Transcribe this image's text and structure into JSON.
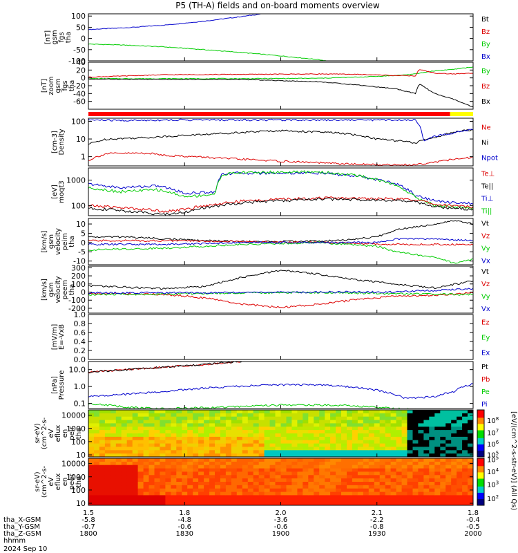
{
  "title": "P5 (TH-A) fields and on-board moments overview",
  "date_label": "2024 Sep 10",
  "colorbar_label": "[eV/(cm^2-s-str-eV)] (All Qs)",
  "colorbar_ticks": [
    "10^8",
    "10^7",
    "10^6",
    "10^5",
    "10^4",
    "10^3",
    "10^2"
  ],
  "colors": {
    "black": "#000000",
    "red": "#dd0000",
    "green": "#00cc00",
    "blue": "#0000cc",
    "yellow": "#ffff00"
  },
  "chart_data": [
    {
      "id": "fgs_gsm_full",
      "type": "line",
      "ylabel": [
        "tha",
        "fgs",
        "gsm",
        "[nT]"
      ],
      "ylim": [
        -100,
        110
      ],
      "yticks": [
        "100",
        "50",
        "0",
        "-50",
        "-100"
      ],
      "legend": [
        {
          "name": "Bt",
          "color": "black"
        },
        {
          "name": "Bz",
          "color": "red"
        },
        {
          "name": "By",
          "color": "green"
        },
        {
          "name": "Bx",
          "color": "blue"
        }
      ],
      "series": [
        {
          "name": "Bx",
          "color": "blue",
          "x": [
            0,
            0.1,
            0.2,
            0.3,
            0.4,
            0.45
          ],
          "y": [
            40,
            48,
            60,
            77,
            98,
            110
          ]
        },
        {
          "name": "By",
          "color": "green",
          "x": [
            0,
            0.1,
            0.2,
            0.3,
            0.4,
            0.5,
            0.6,
            0.62
          ],
          "y": [
            -25,
            -30,
            -38,
            -50,
            -63,
            -78,
            -95,
            -100
          ]
        }
      ]
    },
    {
      "id": "fgs_gsm_zoom",
      "type": "line",
      "ylabel": [
        "tha",
        "fgs",
        "gsm",
        "zoom",
        "[nT]"
      ],
      "ylim": [
        -80,
        40
      ],
      "yticks": [
        "40",
        "20",
        "0",
        "-20",
        "-40",
        "-60"
      ],
      "legend": [
        {
          "name": "By",
          "color": "green"
        },
        {
          "name": "Bz",
          "color": "red"
        },
        {
          "name": "Bx",
          "color": "black"
        }
      ],
      "series": [
        {
          "name": "By",
          "color": "green",
          "x": [
            0,
            0.2,
            0.4,
            0.6,
            0.7,
            0.8,
            0.85,
            0.86,
            0.9,
            0.95,
            1.0
          ],
          "y": [
            -2,
            -2,
            -2,
            -1,
            2,
            6,
            10,
            12,
            18,
            22,
            28
          ]
        },
        {
          "name": "Bz",
          "color": "red",
          "x": [
            0,
            0.2,
            0.4,
            0.6,
            0.7,
            0.8,
            0.85,
            0.86,
            0.9,
            0.95,
            1.0
          ],
          "y": [
            2,
            8,
            9,
            10,
            9,
            6,
            5,
            22,
            12,
            10,
            12
          ]
        },
        {
          "name": "Bx",
          "color": "black",
          "x": [
            0,
            0.2,
            0.4,
            0.6,
            0.7,
            0.8,
            0.85,
            0.86,
            0.9,
            0.95,
            1.0
          ],
          "y": [
            -3,
            -4,
            -4,
            -10,
            -18,
            -28,
            -40,
            -15,
            -40,
            -55,
            -75
          ]
        }
      ],
      "mode_bar": {
        "switch_x": 0.94
      }
    },
    {
      "id": "density",
      "type": "line",
      "log": true,
      "ylabel": [
        "Density",
        "[cm-3]"
      ],
      "ylim": [
        0.3,
        150
      ],
      "yticks": [
        "100",
        "10",
        "1"
      ],
      "legend": [
        {
          "name": "Ne",
          "color": "red"
        },
        {
          "name": "Ni",
          "color": "black"
        },
        {
          "name": "Npot",
          "color": "blue"
        }
      ],
      "series": [
        {
          "name": "Ni",
          "color": "black",
          "x": [
            0,
            0.05,
            0.15,
            0.3,
            0.5,
            0.65,
            0.75,
            0.85,
            0.9,
            1.0
          ],
          "y": [
            5,
            10,
            12,
            18,
            30,
            22,
            10,
            6,
            12,
            35
          ]
        },
        {
          "name": "Ne",
          "color": "red",
          "x": [
            0,
            0.05,
            0.15,
            0.2,
            0.35,
            0.5,
            0.65,
            0.75,
            0.85,
            0.9,
            1.0
          ],
          "y": [
            0.6,
            1.5,
            1.6,
            1.2,
            0.8,
            0.55,
            0.4,
            0.35,
            0.35,
            0.5,
            0.9
          ]
        },
        {
          "name": "Npot",
          "color": "blue",
          "x": [
            0,
            0.1,
            0.2,
            0.3,
            0.5,
            0.7,
            0.85,
            0.87,
            0.9,
            0.95,
            1.0
          ],
          "y": [
            120,
            110,
            120,
            120,
            120,
            120,
            120,
            8,
            14,
            22,
            35
          ]
        }
      ]
    },
    {
      "id": "temperature",
      "type": "line",
      "log": true,
      "ylabel": [
        "moqt3",
        "[eV]"
      ],
      "ylim": [
        40,
        3000
      ],
      "yticks": [
        "1000",
        "100"
      ],
      "legend": [
        {
          "name": "Te⊥",
          "color": "red"
        },
        {
          "name": "Te||",
          "color": "black"
        },
        {
          "name": "Ti⊥",
          "color": "blue"
        },
        {
          "name": "Ti||",
          "color": "green"
        }
      ],
      "series": [
        {
          "name": "Ti⊥",
          "color": "blue",
          "x": [
            0,
            0.08,
            0.18,
            0.25,
            0.33,
            0.35,
            0.4,
            0.6,
            0.7,
            0.8,
            0.85,
            0.9,
            1.0
          ],
          "y": [
            700,
            500,
            600,
            300,
            350,
            1800,
            1900,
            1900,
            1400,
            700,
            250,
            150,
            120
          ]
        },
        {
          "name": "Ti||",
          "color": "green",
          "x": [
            0,
            0.08,
            0.18,
            0.25,
            0.33,
            0.35,
            0.4,
            0.6,
            0.7,
            0.8,
            0.85,
            0.9,
            1.0
          ],
          "y": [
            500,
            350,
            420,
            220,
            280,
            1700,
            2000,
            2100,
            1500,
            600,
            200,
            100,
            80
          ]
        },
        {
          "name": "Te⊥",
          "color": "red",
          "x": [
            0,
            0.1,
            0.2,
            0.25,
            0.4,
            0.6,
            0.75,
            0.85,
            0.9,
            1.0
          ],
          "y": [
            100,
            80,
            60,
            70,
            150,
            200,
            190,
            170,
            110,
            90
          ]
        },
        {
          "name": "Te||",
          "color": "black",
          "x": [
            0,
            0.1,
            0.2,
            0.25,
            0.4,
            0.6,
            0.75,
            0.85,
            0.9,
            1.0
          ],
          "y": [
            80,
            60,
            45,
            55,
            130,
            180,
            170,
            140,
            90,
            70
          ]
        }
      ]
    },
    {
      "id": "peim_velocity",
      "type": "line",
      "ylabel": [
        "tha",
        "peim",
        "velocity",
        "gsm",
        "[km/s]"
      ],
      "ylim": [
        -12,
        13
      ],
      "yticks": [
        "10",
        "5",
        "0",
        "-5",
        "-10"
      ],
      "legend": [
        {
          "name": "Vt",
          "color": "black"
        },
        {
          "name": "Vz",
          "color": "red"
        },
        {
          "name": "Vy",
          "color": "green"
        },
        {
          "name": "Vx",
          "color": "blue"
        }
      ],
      "series": [
        {
          "name": "Vt",
          "color": "black",
          "x": [
            0,
            0.1,
            0.2,
            0.3,
            0.4,
            0.5,
            0.65,
            0.75,
            0.8,
            0.9,
            0.95,
            1.0
          ],
          "y": [
            3,
            3,
            2,
            1,
            0.5,
            0.5,
            1,
            3,
            7,
            10,
            12,
            10
          ]
        },
        {
          "name": "Vz",
          "color": "red",
          "x": [
            0,
            0.2,
            0.4,
            0.6,
            0.8,
            1.0
          ],
          "y": [
            1,
            1,
            0.5,
            0,
            -1,
            -1
          ]
        },
        {
          "name": "Vy",
          "color": "green",
          "x": [
            0,
            0.2,
            0.4,
            0.6,
            0.75,
            0.8,
            0.9,
            0.95,
            1.0
          ],
          "y": [
            -4,
            -3,
            -1,
            0,
            -2,
            -5,
            -8,
            -11,
            -9
          ]
        },
        {
          "name": "Vx",
          "color": "blue",
          "x": [
            0,
            0.2,
            0.4,
            0.6,
            0.75,
            0.8,
            0.9,
            1.0
          ],
          "y": [
            -1,
            -1,
            0,
            0,
            0,
            2,
            2,
            1
          ]
        }
      ]
    },
    {
      "id": "peem_velocity",
      "type": "line",
      "ylabel": [
        "tha",
        "peem",
        "velocity",
        "gsm",
        "[km/s]"
      ],
      "ylim": [
        -260,
        320
      ],
      "yticks": [
        "300",
        "200",
        "100",
        "0",
        "-100",
        "-200"
      ],
      "legend": [
        {
          "name": "Vt",
          "color": "black"
        },
        {
          "name": "Vz",
          "color": "red"
        },
        {
          "name": "Vy",
          "color": "green"
        },
        {
          "name": "Vx",
          "color": "blue"
        }
      ],
      "series": [
        {
          "name": "Vt",
          "color": "black",
          "x": [
            0,
            0.1,
            0.2,
            0.3,
            0.4,
            0.5,
            0.6,
            0.7,
            0.8,
            0.9,
            1.0
          ],
          "y": [
            80,
            60,
            40,
            70,
            180,
            270,
            220,
            150,
            100,
            50,
            140
          ]
        },
        {
          "name": "Vz",
          "color": "red",
          "x": [
            0,
            0.1,
            0.2,
            0.3,
            0.4,
            0.5,
            0.6,
            0.7,
            0.8,
            0.9,
            1.0
          ],
          "y": [
            -20,
            -20,
            -30,
            -70,
            -150,
            -190,
            -150,
            -90,
            -50,
            -40,
            -10
          ]
        },
        {
          "name": "Vy",
          "color": "green",
          "x": [
            0,
            0.2,
            0.4,
            0.6,
            0.8,
            1.0
          ],
          "y": [
            -30,
            -25,
            -10,
            -5,
            -20,
            -30
          ]
        },
        {
          "name": "Vx",
          "color": "blue",
          "x": [
            0,
            0.2,
            0.4,
            0.6,
            0.8,
            0.9,
            1.0
          ],
          "y": [
            -10,
            -10,
            -5,
            0,
            0,
            20,
            40
          ]
        }
      ]
    },
    {
      "id": "efield",
      "type": "line",
      "ylabel": [
        "E=-VxB",
        "[mV/m]"
      ],
      "ylim": [
        0,
        1
      ],
      "yticks": [
        "1.0",
        "0.8",
        "0.6",
        "0.4",
        "0.2",
        "0.0"
      ],
      "legend": [
        {
          "name": "Ez",
          "color": "red"
        },
        {
          "name": "Ey",
          "color": "green"
        },
        {
          "name": "Ex",
          "color": "blue"
        }
      ],
      "series": []
    },
    {
      "id": "pressure",
      "type": "line",
      "log": true,
      "ylabel": [
        "Pressure",
        "[nPa]"
      ],
      "ylim": [
        0.05,
        30
      ],
      "yticks": [
        "10.0",
        "1.0",
        "0.1"
      ],
      "legend": [
        {
          "name": "Pt",
          "color": "black"
        },
        {
          "name": "Pb",
          "color": "red"
        },
        {
          "name": "Pe",
          "color": "green"
        },
        {
          "name": "Pi",
          "color": "blue"
        }
      ],
      "series": [
        {
          "name": "Pb",
          "color": "red",
          "x": [
            0,
            0.1,
            0.2,
            0.3,
            0.4
          ],
          "y": [
            7,
            10,
            14,
            20,
            30
          ]
        },
        {
          "name": "Pt",
          "color": "black",
          "x": [
            0,
            0.1,
            0.2,
            0.3,
            0.4
          ],
          "y": [
            7,
            10,
            14,
            20,
            30
          ]
        },
        {
          "name": "Pi",
          "color": "blue",
          "x": [
            0,
            0.1,
            0.2,
            0.3,
            0.45,
            0.55,
            0.65,
            0.75,
            0.82,
            0.9,
            0.95,
            1.0
          ],
          "y": [
            0.25,
            0.35,
            0.5,
            0.8,
            1.2,
            1.3,
            1.1,
            0.6,
            0.2,
            0.25,
            0.5,
            1.5
          ]
        },
        {
          "name": "Pe",
          "color": "green",
          "x": [
            0,
            0.1,
            0.2,
            0.35,
            0.5,
            0.65,
            0.8,
            0.9,
            1.0
          ],
          "y": [
            0.1,
            0.06,
            0.05,
            0.06,
            0.08,
            0.08,
            0.05,
            0.04,
            0.05
          ]
        }
      ]
    },
    {
      "id": "peir_spectrogram",
      "type": "heatmap",
      "log": true,
      "ylabel": [
        "tha",
        "peir",
        "en",
        "eflux",
        "eV",
        "(cm^2-s-",
        "sr-eV)"
      ],
      "ylim": [
        7,
        25000
      ],
      "yticks": [
        "10000",
        "1000",
        "100",
        "10"
      ]
    },
    {
      "id": "peer_spectrogram",
      "type": "heatmap",
      "log": true,
      "ylabel": [
        "tha",
        "peer",
        "en",
        "eflux",
        "eV",
        "(cm^2-s-",
        "sr-eV)"
      ],
      "ylim": [
        7,
        25000
      ],
      "yticks": [
        "10000",
        "1000",
        "100",
        "10"
      ]
    }
  ],
  "x_axis": {
    "rows": [
      {
        "label": "tha_X-GSM",
        "values": [
          "-5.8",
          "-4.8",
          "-3.6",
          "-2.2",
          "-0.4"
        ]
      },
      {
        "label": "tha_Y-GSM",
        "values": [
          "-0.7",
          "-0.6",
          "-0.6",
          "-0.8",
          "-0.5"
        ]
      },
      {
        "label": "tha_Z-GSM",
        "values": [
          "1800",
          "1830",
          "1900",
          "1930",
          "2000"
        ]
      },
      {
        "label": "hhmm",
        "values": []
      }
    ],
    "top_values": [
      "1.5",
      "1.8",
      "2.0",
      "2.1",
      "1.8"
    ],
    "tick_positions": [
      0,
      0.25,
      0.5,
      0.75,
      1.0
    ]
  }
}
